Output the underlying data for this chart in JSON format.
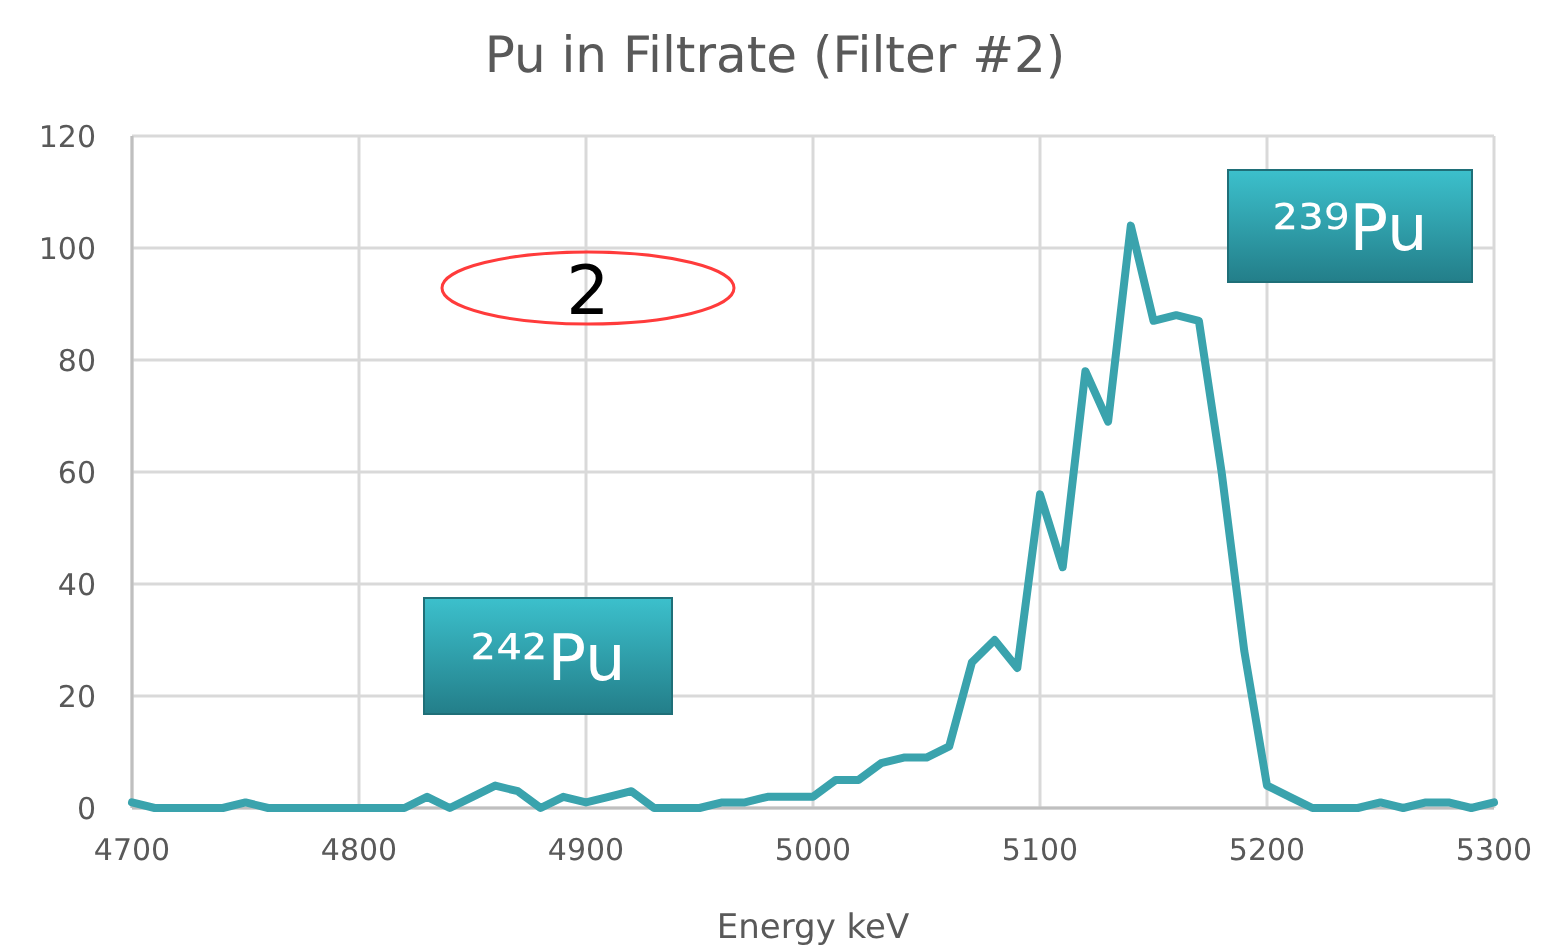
{
  "chart_data": {
    "type": "line",
    "title": "Pu in Filtrate (Filter #2)",
    "xlabel": "Energy keV",
    "x": [
      4700,
      4710,
      4720,
      4730,
      4740,
      4750,
      4760,
      4770,
      4780,
      4790,
      4800,
      4810,
      4820,
      4830,
      4840,
      4850,
      4860,
      4870,
      4880,
      4890,
      4900,
      4910,
      4920,
      4930,
      4940,
      4950,
      4960,
      4970,
      4980,
      4990,
      5000,
      5010,
      5020,
      5030,
      5040,
      5050,
      5060,
      5070,
      5080,
      5090,
      5100,
      5110,
      5120,
      5130,
      5140,
      5150,
      5160,
      5170,
      5180,
      5190,
      5200,
      5210,
      5220,
      5230,
      5240,
      5250,
      5260,
      5270,
      5280,
      5290,
      5300
    ],
    "series": [
      {
        "color": "#3aa3ad",
        "values": [
          1,
          0,
          0,
          0,
          0,
          1,
          0,
          0,
          0,
          0,
          0,
          0,
          0,
          2,
          0,
          2,
          4,
          3,
          0,
          2,
          1,
          2,
          3,
          0,
          0,
          0,
          1,
          1,
          2,
          2,
          2,
          5,
          5,
          8,
          9,
          9,
          11,
          26,
          30,
          25,
          56,
          43,
          78,
          69,
          104,
          87,
          88,
          87,
          60,
          28,
          4,
          2,
          0,
          0,
          0,
          1,
          0,
          1,
          1,
          0,
          1
        ]
      }
    ],
    "xlim": [
      4700,
      5300
    ],
    "xticks": [
      4700,
      4800,
      4900,
      5000,
      5100,
      5200,
      5300
    ],
    "ylim": [
      0,
      120
    ],
    "yticks": [
      0,
      20,
      40,
      60,
      80,
      100,
      120
    ],
    "grid": true,
    "marker": "none",
    "line_style": "solid",
    "annotations": [
      "²⁴²Pu",
      "²³⁹Pu",
      "2"
    ]
  }
}
